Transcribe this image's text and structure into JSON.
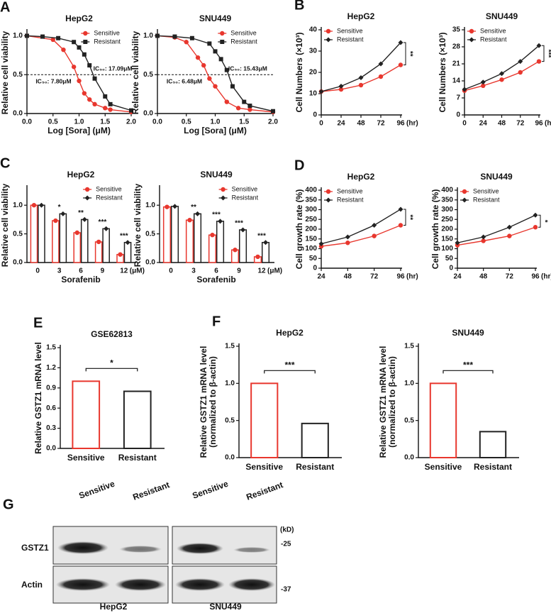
{
  "chart_data": [
    {
      "type": "scatter",
      "panel": "A",
      "title": "HepG2",
      "xlabel": "Log [Sora] (μM)",
      "ylabel": "Relative cell viability",
      "xlim": [
        0,
        2
      ],
      "xticks": [
        {
          "value": 0,
          "label": "0.0"
        },
        {
          "value": 0.5,
          "label": "0.5"
        },
        {
          "value": 1,
          "label": "1.0"
        },
        {
          "value": 1.5,
          "label": "1.5"
        },
        {
          "value": 2,
          "label": "2.0"
        }
      ],
      "ylim": [
        0,
        1.05
      ],
      "yticks": [
        {
          "value": 0,
          "label": "0.0"
        },
        {
          "value": 0.5,
          "label": "0.5"
        },
        {
          "value": 1,
          "label": "1.0"
        }
      ],
      "ref_line": 0.5,
      "legend": "upper right",
      "ic50": [
        {
          "label": "IC₅₀: 17.09μM",
          "value": 17.09
        },
        {
          "label": "IC₅₀: 7.80μM",
          "value": 7.8
        }
      ],
      "series": [
        {
          "name": "Sensitive",
          "color": "#e8372e",
          "marker": "circle",
          "x": [
            0,
            0.5,
            0.7,
            0.9,
            1.0,
            1.1,
            1.2,
            1.3,
            1.5,
            1.6,
            2.0
          ],
          "values": [
            1.0,
            0.95,
            0.82,
            0.6,
            0.42,
            0.26,
            0.18,
            0.12,
            0.07,
            0.05,
            0.02
          ]
        },
        {
          "name": "Resistant",
          "color": "#222222",
          "marker": "square",
          "x": [
            0,
            0.3,
            0.6,
            0.9,
            1.0,
            1.1,
            1.2,
            1.3,
            1.5,
            1.6,
            2.0
          ],
          "values": [
            1.0,
            0.99,
            0.97,
            0.92,
            0.85,
            0.76,
            0.62,
            0.45,
            0.22,
            0.12,
            0.04
          ]
        }
      ]
    },
    {
      "type": "scatter",
      "title": "SNU449",
      "xlabel": "Log [Sora] (μM)",
      "ylabel": "Relative cell viability",
      "xlim": [
        0,
        2
      ],
      "xticks": [
        {
          "value": 0,
          "label": "0.0"
        },
        {
          "value": 0.5,
          "label": "0.5"
        },
        {
          "value": 1,
          "label": "1.0"
        },
        {
          "value": 1.5,
          "label": "1.5"
        },
        {
          "value": 2,
          "label": "2.0"
        }
      ],
      "ylim": [
        0,
        1.05
      ],
      "yticks": [
        {
          "value": 0,
          "label": "0.0"
        },
        {
          "value": 0.5,
          "label": "0.5"
        },
        {
          "value": 1,
          "label": "1.0"
        }
      ],
      "ref_line": 0.5,
      "legend": "upper right",
      "ic50": [
        {
          "label": "IC₅₀: 15.43μM",
          "value": 15.43
        },
        {
          "label": "IC₅₀: 6.48μM",
          "value": 6.48
        }
      ],
      "series": [
        {
          "name": "Sensitive",
          "color": "#e8372e",
          "marker": "circle",
          "x": [
            0,
            0.3,
            0.5,
            0.7,
            0.8,
            0.9,
            1.0,
            1.2,
            1.4,
            1.6,
            2.0
          ],
          "values": [
            1.0,
            0.98,
            0.92,
            0.72,
            0.62,
            0.45,
            0.35,
            0.15,
            0.07,
            0.05,
            0.02
          ]
        },
        {
          "name": "Resistant",
          "color": "#222222",
          "marker": "square",
          "x": [
            0,
            0.3,
            0.6,
            0.9,
            1.0,
            1.1,
            1.2,
            1.3,
            1.5,
            1.6,
            2.0
          ],
          "values": [
            1.0,
            0.99,
            0.97,
            0.9,
            0.8,
            0.7,
            0.56,
            0.35,
            0.15,
            0.1,
            0.03
          ]
        }
      ]
    },
    {
      "type": "line",
      "panel": "B",
      "title": "HepG2",
      "ylabel": "Cell Numbers (×10³)",
      "xunit": "(hr)",
      "xlim": [
        0,
        96
      ],
      "xticks": [
        0,
        24,
        48,
        72,
        96
      ],
      "ylim": [
        0,
        40
      ],
      "yticks": [
        0,
        10,
        20,
        30,
        40
      ],
      "legend": "upper left",
      "significance": "**",
      "series": [
        {
          "name": "Sensitive",
          "color": "#e8372e",
          "marker": "circle",
          "x": [
            0,
            24,
            48,
            72,
            96
          ],
          "values": [
            11,
            12,
            14,
            18,
            23.5
          ]
        },
        {
          "name": "Resistant",
          "color": "#222222",
          "marker": "diamond",
          "x": [
            0,
            24,
            48,
            72,
            96
          ],
          "values": [
            11,
            13.5,
            17.5,
            24,
            34
          ]
        }
      ]
    },
    {
      "type": "line",
      "title": "SNU449",
      "ylabel": "Cell Numbers (×10³)",
      "xunit": "(hr)",
      "xlim": [
        0,
        96
      ],
      "xticks": [
        0,
        24,
        48,
        72,
        96
      ],
      "ylim": [
        0,
        35
      ],
      "yticks": [
        0,
        7,
        14,
        21,
        28,
        35
      ],
      "legend": "upper left",
      "significance": "***",
      "series": [
        {
          "name": "Sensitive",
          "color": "#e8372e",
          "marker": "circle",
          "x": [
            0,
            24,
            48,
            72,
            96
          ],
          "values": [
            10,
            12,
            14.5,
            17.5,
            22
          ]
        },
        {
          "name": "Resistant",
          "color": "#222222",
          "marker": "diamond",
          "x": [
            0,
            24,
            48,
            72,
            96
          ],
          "values": [
            10.5,
            13.5,
            17,
            22,
            28.5
          ]
        }
      ]
    },
    {
      "type": "bar",
      "panel": "C",
      "title": "HepG2",
      "xlabel": "Sorafenib",
      "ylabel": "Relative cell viability",
      "xunit": "(μM)",
      "categories": [
        "0",
        "3",
        "6",
        "9",
        "12"
      ],
      "ylim": [
        0,
        1.3
      ],
      "yticks": [
        {
          "value": 0,
          "label": "0.0"
        },
        {
          "value": 0.5,
          "label": "0.5"
        },
        {
          "value": 1,
          "label": "1.0"
        }
      ],
      "legend": "upper right",
      "significance": [
        null,
        "*",
        "**",
        "***",
        "***"
      ],
      "series": [
        {
          "name": "Sensitive",
          "color": "#e8372e",
          "marker": "circle",
          "values": [
            1.0,
            0.73,
            0.52,
            0.36,
            0.14
          ]
        },
        {
          "name": "Resistant",
          "color": "#222222",
          "marker": "diamond",
          "values": [
            1.0,
            0.85,
            0.75,
            0.59,
            0.35
          ]
        }
      ]
    },
    {
      "type": "bar",
      "title": "SNU449",
      "xlabel": "Sorafenib",
      "ylabel": "Relative cell viability",
      "xunit": "(μM)",
      "categories": [
        "0",
        "3",
        "6",
        "9",
        "12"
      ],
      "ylim": [
        0,
        1.3
      ],
      "yticks": [
        {
          "value": 0,
          "label": "0.0"
        },
        {
          "value": 0.5,
          "label": "0.5"
        },
        {
          "value": 1,
          "label": "1.0"
        }
      ],
      "legend": "upper right",
      "significance": [
        null,
        "**",
        "***",
        "***",
        "***"
      ],
      "series": [
        {
          "name": "Sensitive",
          "color": "#e8372e",
          "marker": "circle",
          "values": [
            0.97,
            0.74,
            0.48,
            0.22,
            0.1
          ]
        },
        {
          "name": "Resistant",
          "color": "#222222",
          "marker": "diamond",
          "values": [
            0.98,
            0.85,
            0.72,
            0.57,
            0.35
          ]
        }
      ]
    },
    {
      "type": "line",
      "panel": "D",
      "title": "HepG2",
      "ylabel": "Cell growth rate (%)",
      "xunit": "(hr)",
      "xlim": [
        24,
        96
      ],
      "xticks": [
        24,
        48,
        72,
        96
      ],
      "ylim": [
        0,
        400
      ],
      "yticks": [
        0,
        50,
        100,
        150,
        200,
        250,
        300,
        350,
        400
      ],
      "legend": "upper left",
      "significance": "**",
      "series": [
        {
          "name": "Sensitive",
          "color": "#e8372e",
          "marker": "circle",
          "x": [
            24,
            48,
            72,
            96
          ],
          "values": [
            112,
            130,
            165,
            220
          ]
        },
        {
          "name": "Resistant",
          "color": "#222222",
          "marker": "diamond",
          "x": [
            24,
            48,
            72,
            96
          ],
          "values": [
            125,
            160,
            220,
            302
          ]
        }
      ]
    },
    {
      "type": "line",
      "title": "SNU449",
      "ylabel": "Cell growth rate (%)",
      "xunit": "(hr)",
      "xlim": [
        24,
        96
      ],
      "xticks": [
        24,
        48,
        72,
        96
      ],
      "ylim": [
        0,
        400
      ],
      "yticks": [
        0,
        50,
        100,
        150,
        200,
        250,
        300,
        350,
        400
      ],
      "legend": "upper left",
      "significance": "*",
      "series": [
        {
          "name": "Sensitive",
          "color": "#e8372e",
          "marker": "circle",
          "x": [
            24,
            48,
            72,
            96
          ],
          "values": [
            118,
            140,
            165,
            210
          ]
        },
        {
          "name": "Resistant",
          "color": "#222222",
          "marker": "diamond",
          "x": [
            24,
            48,
            72,
            96
          ],
          "values": [
            130,
            160,
            210,
            272
          ]
        }
      ]
    },
    {
      "type": "bar",
      "panel": "E",
      "title": "GSE62813",
      "ylabel": "Relative GSTZ1 mRNA level",
      "categories": [
        "Sensitive",
        "Resistant"
      ],
      "values": [
        1.0,
        0.85
      ],
      "colors": [
        "#e8372e",
        "#222222"
      ],
      "ylim": [
        0,
        1.5
      ],
      "yticks": [
        {
          "value": 0,
          "label": "0.0"
        },
        {
          "value": 0.3,
          "label": "0.3"
        },
        {
          "value": 0.6,
          "label": "0.6"
        },
        {
          "value": 0.9,
          "label": "0.9"
        },
        {
          "value": 1.2,
          "label": "1.2"
        },
        {
          "value": 1.5,
          "label": "1.5"
        }
      ],
      "significance": "*"
    },
    {
      "type": "bar",
      "panel": "F",
      "title": "HepG2",
      "ylabel": [
        "Relative GSTZ1 mRNA level",
        "(normalized to β-actin)"
      ],
      "categories": [
        "Sensitive",
        "Resistant"
      ],
      "values": [
        1.0,
        0.46
      ],
      "colors": [
        "#e8372e",
        "#222222"
      ],
      "ylim": [
        0,
        1.5
      ],
      "yticks": [
        {
          "value": 0,
          "label": "0.0"
        },
        {
          "value": 0.5,
          "label": "0.5"
        },
        {
          "value": 1,
          "label": "1.0"
        },
        {
          "value": 1.5,
          "label": "1.5"
        }
      ],
      "significance": "***"
    },
    {
      "type": "bar",
      "title": "SNU449",
      "ylabel": [
        "Relative GSTZ1 mRNA level",
        "(normalized to β-actin)"
      ],
      "categories": [
        "Sensitive",
        "Resistant"
      ],
      "values": [
        1.0,
        0.35
      ],
      "colors": [
        "#e8372e",
        "#222222"
      ],
      "ylim": [
        0,
        1.5
      ],
      "yticks": [
        {
          "value": 0,
          "label": "0.0"
        },
        {
          "value": 0.5,
          "label": "0.5"
        },
        {
          "value": 1,
          "label": "1.0"
        },
        {
          "value": 1.5,
          "label": "1.5"
        }
      ],
      "significance": "***"
    }
  ],
  "blot": {
    "panel": "G",
    "lanes": [
      "Sensitive",
      "Resistant",
      "Sensitive",
      "Resistant"
    ],
    "rows": [
      "GSTZ1",
      "Actin"
    ],
    "unit": "(kD)",
    "markers": [
      "-25",
      "-37"
    ],
    "cells": [
      "HepG2",
      "SNU449"
    ]
  }
}
